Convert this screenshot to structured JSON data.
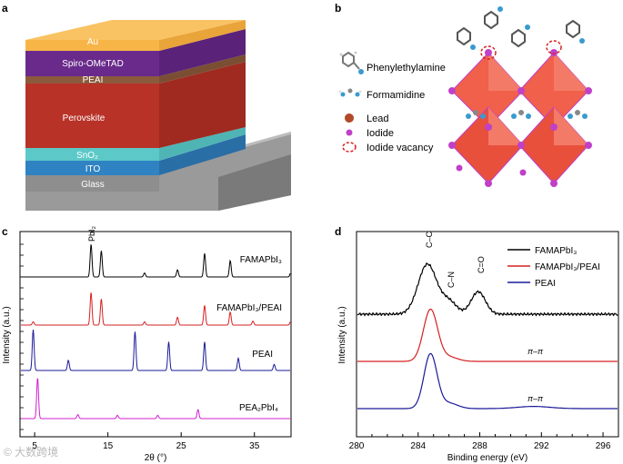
{
  "panels": {
    "a": "a",
    "b": "b",
    "c": "c",
    "d": "d"
  },
  "panel_a": {
    "layers": [
      "Au",
      "Spiro-OMeTAD",
      "PEAI",
      "Perovskite",
      "SnO₂",
      "ITO",
      "Glass"
    ],
    "colors": {
      "au": "#f7b548",
      "spiro": "#6a2a8c",
      "peai": "#8b5a3c",
      "perovskite": "#b83228",
      "sno2": "#5cc8c8",
      "ito": "#2f83c2",
      "glass": "#8e8e8e"
    }
  },
  "panel_b": {
    "legend": [
      "Phenylethylamine",
      "Formamidine",
      "Lead",
      "Iodide",
      "Iodide vacancy"
    ],
    "colors": {
      "octahedron": "#f0604a",
      "iodide": "#c040c8",
      "lead": "#b04a28",
      "vacancy": "#d62020"
    }
  },
  "chart_data": [
    {
      "type": "line",
      "xlabel": "2θ (°)",
      "ylabel": "Intensity (a.u.)",
      "xlim": [
        3,
        40
      ],
      "xticks": [
        5,
        15,
        25,
        35
      ],
      "tick_labels": [
        "5",
        "15",
        "25",
        "35"
      ],
      "annotation": "PbI₂",
      "series": [
        {
          "name": "FAMAPbI₃",
          "color": "#000000",
          "peaks": [
            [
              12.7,
              1.0
            ],
            [
              14.1,
              0.8
            ],
            [
              20.0,
              0.12
            ],
            [
              24.5,
              0.22
            ],
            [
              28.2,
              0.72
            ],
            [
              31.7,
              0.5
            ],
            [
              40.0,
              0.18
            ]
          ]
        },
        {
          "name": "FAMAPbI₃/PEAI",
          "color": "#d62020",
          "peaks": [
            [
              4.8,
              0.1
            ],
            [
              12.7,
              1.0
            ],
            [
              14.1,
              0.8
            ],
            [
              20.0,
              0.1
            ],
            [
              24.5,
              0.24
            ],
            [
              28.2,
              0.6
            ],
            [
              31.7,
              0.4
            ],
            [
              34.8,
              0.12
            ],
            [
              40.0,
              0.16
            ]
          ]
        },
        {
          "name": "PEAI",
          "color": "#1a1a9a",
          "peaks": [
            [
              4.8,
              1.0
            ],
            [
              9.6,
              0.25
            ],
            [
              18.7,
              0.95
            ],
            [
              23.3,
              0.7
            ],
            [
              28.2,
              0.7
            ],
            [
              32.8,
              0.3
            ],
            [
              37.7,
              0.15
            ]
          ]
        },
        {
          "name": "PEA₂PbI₄",
          "color": "#d020d0",
          "peaks": [
            [
              5.4,
              1.0
            ],
            [
              10.9,
              0.1
            ],
            [
              16.3,
              0.08
            ],
            [
              21.8,
              0.08
            ],
            [
              27.3,
              0.22
            ]
          ]
        }
      ]
    },
    {
      "type": "line",
      "xlabel": "Binding energy (eV)",
      "ylabel": "Intensity (a.u.)",
      "xlim": [
        280,
        297
      ],
      "xticks": [
        280,
        284,
        288,
        292,
        296
      ],
      "tick_labels": [
        "280",
        "284",
        "288",
        "292",
        "296"
      ],
      "peak_labels": [
        "C–C",
        "C–N",
        "C=O"
      ],
      "pi_labels": [
        "π–π",
        "π–π"
      ],
      "series": [
        {
          "name": "FAMAPbI₃",
          "color": "#000000",
          "peaks": [
            [
              284.6,
              1.0,
              0.85
            ],
            [
              286.0,
              0.25,
              0.7
            ],
            [
              287.9,
              0.45,
              0.65
            ]
          ]
        },
        {
          "name": "FAMAPbI₃/PEAI",
          "color": "#d62020",
          "peaks": [
            [
              284.8,
              0.95,
              0.65
            ],
            [
              286.0,
              0.08,
              0.8
            ]
          ]
        },
        {
          "name": "PEAI",
          "color": "#1a1a9a",
          "peaks": [
            [
              284.8,
              1.0,
              0.6
            ],
            [
              286.0,
              0.1,
              0.8
            ],
            [
              291.5,
              0.04,
              1.5
            ]
          ]
        }
      ]
    }
  ],
  "watermark": "© 大数跨境"
}
